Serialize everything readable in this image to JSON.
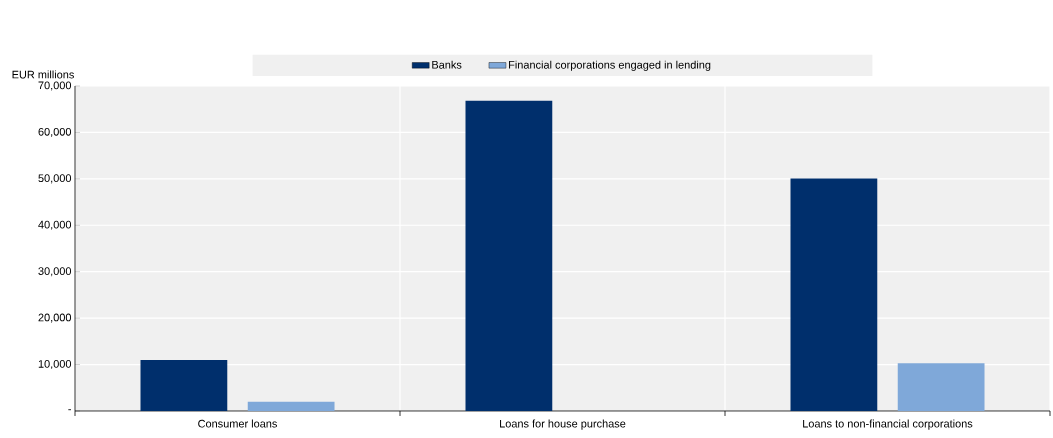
{
  "chart_data": {
    "type": "bar",
    "ylabel": "EUR millions",
    "categories": [
      "Consumer loans",
      "Loans for house purchase",
      "Loans to non-financial corporations"
    ],
    "series": [
      {
        "name": "Banks",
        "color": "#002f6c",
        "values": [
          11000,
          66800,
          50100
        ]
      },
      {
        "name": "Financial corporations engaged in lending",
        "color": "#7fa8d9",
        "values": [
          2000,
          null,
          10300
        ]
      }
    ],
    "ylim": [
      0,
      70000
    ],
    "yticks": [
      {
        "value": 0,
        "label": "-"
      },
      {
        "value": 10000,
        "label": "10,000"
      },
      {
        "value": 20000,
        "label": "20,000"
      },
      {
        "value": 30000,
        "label": "30,000"
      },
      {
        "value": 40000,
        "label": "40,000"
      },
      {
        "value": 50000,
        "label": "50,000"
      },
      {
        "value": 60000,
        "label": "60,000"
      },
      {
        "value": 70000,
        "label": "70,000"
      }
    ],
    "grid": true,
    "legend": "top"
  }
}
